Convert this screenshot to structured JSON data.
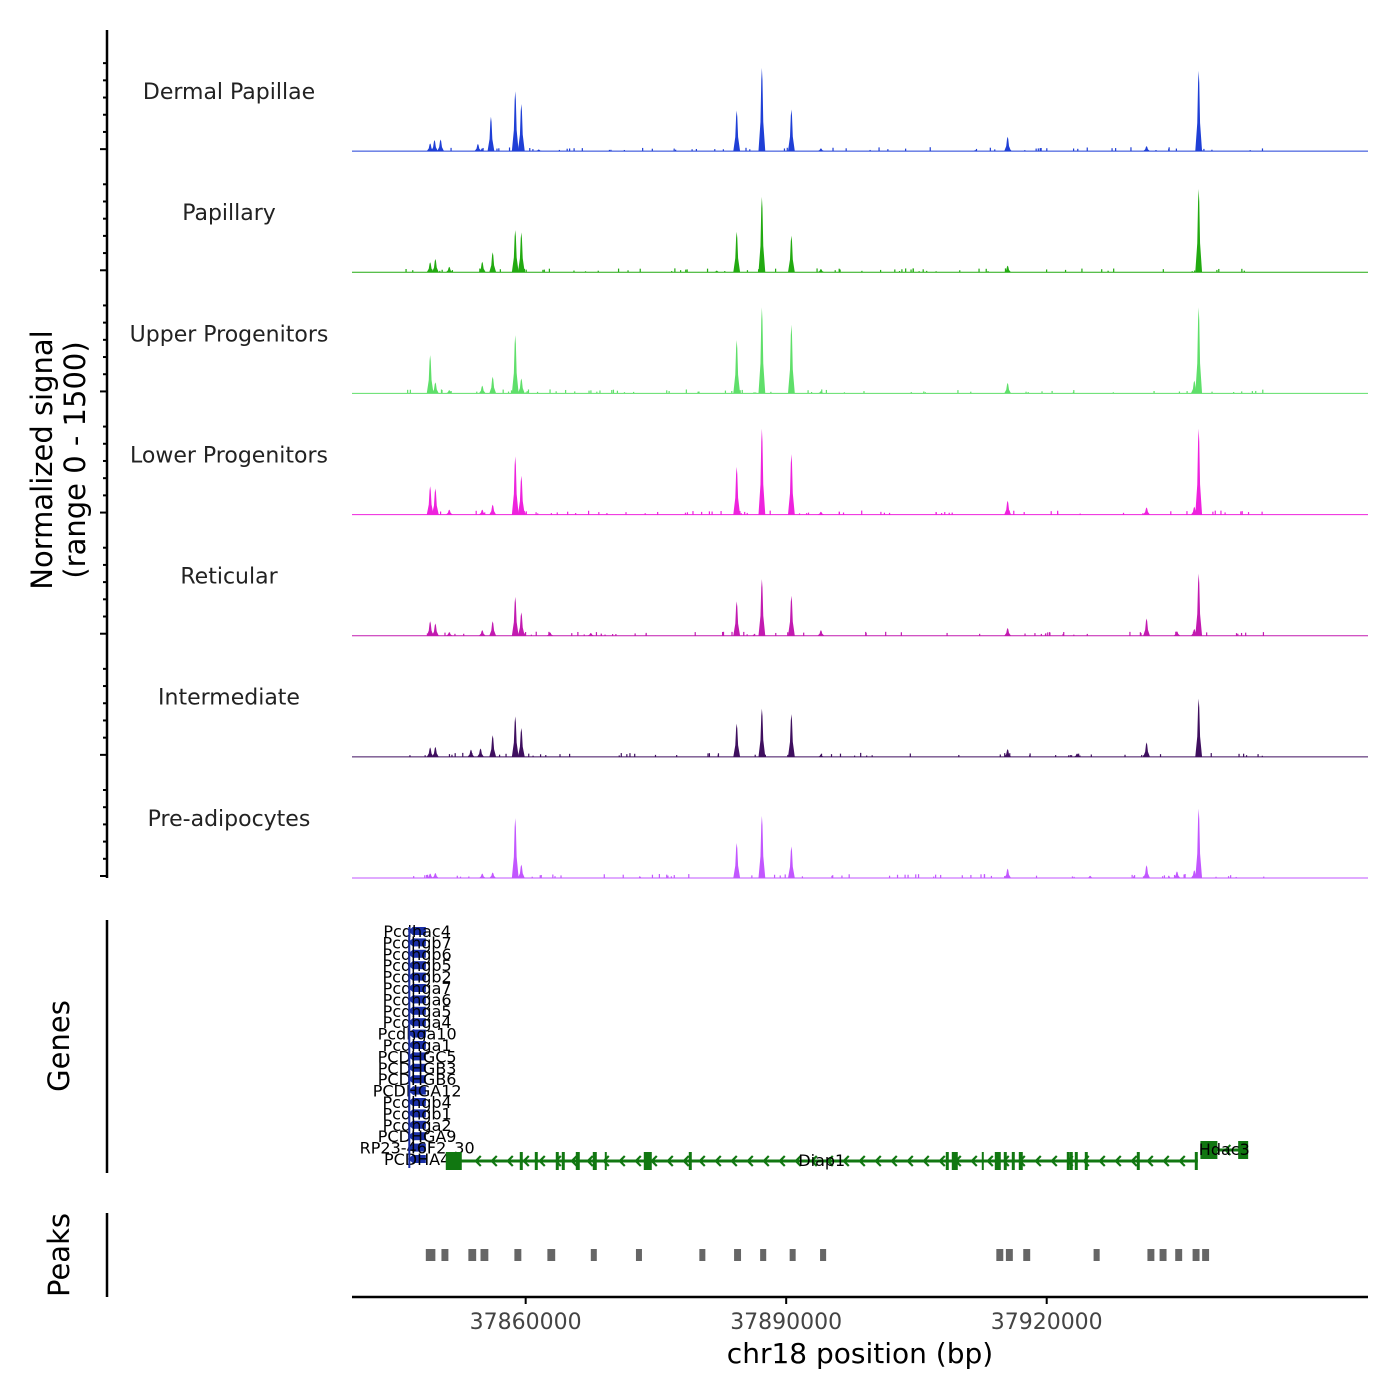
{
  "chart_data": {
    "type": "area",
    "title": "",
    "xlabel": "chr18 position (bp)",
    "ylabel_main": "Normalized signal",
    "ylabel_sub": "(range 0 - 1500)",
    "xlim": [
      37840000,
      37957000
    ],
    "ylim": [
      0,
      1500
    ],
    "x_ticks": [
      37860000,
      37890000,
      37920000
    ],
    "x_tick_labels": [
      "37860000",
      "37890000",
      "37920000"
    ],
    "tracks_label": "Genes",
    "peaks_label": "Peaks",
    "series": [
      {
        "name": "Dermal Papillae",
        "color": "#1f3fd6",
        "peaks": [
          [
            37849000,
            140
          ],
          [
            37849500,
            200
          ],
          [
            37850200,
            210
          ],
          [
            37854500,
            130
          ],
          [
            37856000,
            620
          ],
          [
            37858800,
            1080
          ],
          [
            37859500,
            850
          ],
          [
            37861500,
            30
          ],
          [
            37884300,
            730
          ],
          [
            37887200,
            1500
          ],
          [
            37890600,
            750
          ],
          [
            37894000,
            50
          ],
          [
            37915500,
            260
          ],
          [
            37931500,
            90
          ],
          [
            37937500,
            1450
          ]
        ]
      },
      {
        "name": "Papillary",
        "color": "#22aa11",
        "peaks": [
          [
            37849000,
            180
          ],
          [
            37849600,
            240
          ],
          [
            37851200,
            100
          ],
          [
            37855000,
            190
          ],
          [
            37856200,
            360
          ],
          [
            37858800,
            760
          ],
          [
            37859500,
            720
          ],
          [
            37882000,
            30
          ],
          [
            37884300,
            730
          ],
          [
            37887200,
            1360
          ],
          [
            37890600,
            660
          ],
          [
            37894000,
            60
          ],
          [
            37915500,
            120
          ],
          [
            37937500,
            1500
          ]
        ]
      },
      {
        "name": "Upper Progenitors",
        "color": "#5fdf6a",
        "peaks": [
          [
            37849000,
            690
          ],
          [
            37849600,
            200
          ],
          [
            37851200,
            60
          ],
          [
            37855000,
            140
          ],
          [
            37856200,
            300
          ],
          [
            37858800,
            1050
          ],
          [
            37859500,
            270
          ],
          [
            37884300,
            960
          ],
          [
            37887200,
            1550
          ],
          [
            37890600,
            1240
          ],
          [
            37894000,
            40
          ],
          [
            37915500,
            190
          ],
          [
            37937000,
            230
          ],
          [
            37937500,
            1800
          ]
        ]
      },
      {
        "name": "Lower Progenitors",
        "color": "#ee22dd",
        "peaks": [
          [
            37849000,
            510
          ],
          [
            37849600,
            470
          ],
          [
            37851200,
            90
          ],
          [
            37855000,
            90
          ],
          [
            37856200,
            180
          ],
          [
            37858800,
            1050
          ],
          [
            37859500,
            700
          ],
          [
            37884300,
            860
          ],
          [
            37887200,
            1580
          ],
          [
            37890600,
            1090
          ],
          [
            37894000,
            50
          ],
          [
            37915500,
            250
          ],
          [
            37931500,
            130
          ],
          [
            37937000,
            140
          ],
          [
            37937500,
            1650
          ]
        ]
      },
      {
        "name": "Reticular",
        "color": "#c21ab0",
        "peaks": [
          [
            37849000,
            260
          ],
          [
            37849600,
            220
          ],
          [
            37851200,
            60
          ],
          [
            37855000,
            100
          ],
          [
            37856200,
            260
          ],
          [
            37858800,
            700
          ],
          [
            37859500,
            420
          ],
          [
            37862800,
            60
          ],
          [
            37867500,
            50
          ],
          [
            37884300,
            620
          ],
          [
            37887200,
            1020
          ],
          [
            37890600,
            720
          ],
          [
            37894000,
            100
          ],
          [
            37915500,
            140
          ],
          [
            37931500,
            310
          ],
          [
            37935000,
            80
          ],
          [
            37937000,
            120
          ],
          [
            37937500,
            1120
          ]
        ]
      },
      {
        "name": "Intermediate",
        "color": "#3f0f5f",
        "peaks": [
          [
            37849000,
            170
          ],
          [
            37849600,
            180
          ],
          [
            37853700,
            130
          ],
          [
            37854800,
            150
          ],
          [
            37856200,
            390
          ],
          [
            37858800,
            730
          ],
          [
            37859500,
            520
          ],
          [
            37884300,
            600
          ],
          [
            37887200,
            870
          ],
          [
            37890600,
            770
          ],
          [
            37894000,
            40
          ],
          [
            37915500,
            140
          ],
          [
            37923500,
            60
          ],
          [
            37931500,
            260
          ],
          [
            37937500,
            1050
          ]
        ]
      },
      {
        "name": "Pre-adipocytes",
        "color": "#c256ff",
        "peaks": [
          [
            37849000,
            80
          ],
          [
            37849600,
            90
          ],
          [
            37855000,
            80
          ],
          [
            37856200,
            100
          ],
          [
            37858800,
            1080
          ],
          [
            37859500,
            240
          ],
          [
            37884300,
            630
          ],
          [
            37887200,
            1120
          ],
          [
            37890600,
            570
          ],
          [
            37915500,
            170
          ],
          [
            37925000,
            40
          ],
          [
            37931500,
            230
          ],
          [
            37935000,
            120
          ],
          [
            37937000,
            140
          ],
          [
            37937500,
            1250
          ]
        ]
      }
    ],
    "genes": [
      {
        "name": "Pcdhac4",
        "strand": "-",
        "start": 37846500,
        "end": 37848500
      },
      {
        "name": "Pcdhgb7",
        "strand": "-",
        "start": 37846500,
        "end": 37848500
      },
      {
        "name": "Pcdhgb6",
        "strand": "-",
        "start": 37846500,
        "end": 37848500
      },
      {
        "name": "Pcdhgb5",
        "strand": "-",
        "start": 37846500,
        "end": 37848500
      },
      {
        "name": "Pcdhgb2",
        "strand": "-",
        "start": 37846500,
        "end": 37848500
      },
      {
        "name": "Pcdhga7",
        "strand": "-",
        "start": 37846500,
        "end": 37848500
      },
      {
        "name": "Pcdhga6",
        "strand": "-",
        "start": 37846500,
        "end": 37848500
      },
      {
        "name": "Pcdhga5",
        "strand": "-",
        "start": 37846500,
        "end": 37848500
      },
      {
        "name": "Pcdhga4",
        "strand": "-",
        "start": 37846500,
        "end": 37848500
      },
      {
        "name": "Pcdhga10",
        "strand": "-",
        "start": 37846500,
        "end": 37848500
      },
      {
        "name": "Pcdhga1",
        "strand": "-",
        "start": 37846500,
        "end": 37848500
      },
      {
        "name": "PCDHGC5",
        "strand": "-",
        "start": 37846500,
        "end": 37848500
      },
      {
        "name": "PCDHGB3",
        "strand": "-",
        "start": 37846500,
        "end": 37848500
      },
      {
        "name": "PCDHGB6",
        "strand": "-",
        "start": 37846500,
        "end": 37848500
      },
      {
        "name": "PCDHGA12",
        "strand": "-",
        "start": 37846500,
        "end": 37848500
      },
      {
        "name": "Pcdhgb4",
        "strand": "-",
        "start": 37846500,
        "end": 37848500
      },
      {
        "name": "Pcdhgb1",
        "strand": "-",
        "start": 37846500,
        "end": 37848500
      },
      {
        "name": "Pcdhga2",
        "strand": "-",
        "start": 37846500,
        "end": 37848500
      },
      {
        "name": "PCDHGA9",
        "strand": "-",
        "start": 37846500,
        "end": 37848500
      },
      {
        "name": "RP23-46F2_30",
        "strand": "-",
        "start": 37846500,
        "end": 37848500
      },
      {
        "name": "PCDHA4",
        "strand": "-",
        "start": 37846500,
        "end": 37848500
      }
    ],
    "gene_models": [
      {
        "name": "Diap1",
        "strand": "-",
        "start": 37850800,
        "end": 37937400
      },
      {
        "name": "Hdac3",
        "strand": "-",
        "start": 37937700,
        "end": 37943200
      }
    ],
    "peak_regions": [
      [
        37848500,
        37849600
      ],
      [
        37850300,
        37851100
      ],
      [
        37853400,
        37854300
      ],
      [
        37854800,
        37855700
      ],
      [
        37858700,
        37859500
      ],
      [
        37862500,
        37863400
      ],
      [
        37867500,
        37868000
      ],
      [
        37872700,
        37873300
      ],
      [
        37880000,
        37880600
      ],
      [
        37884000,
        37884800
      ],
      [
        37887000,
        37887700
      ],
      [
        37890400,
        37891000
      ],
      [
        37893900,
        37894600
      ],
      [
        37914200,
        37915000
      ],
      [
        37915300,
        37916100
      ],
      [
        37917300,
        37918100
      ],
      [
        37925400,
        37926100
      ],
      [
        37931600,
        37932400
      ],
      [
        37933000,
        37933800
      ],
      [
        37934800,
        37935600
      ],
      [
        37936800,
        37937600
      ],
      [
        37937900,
        37938700
      ]
    ]
  }
}
